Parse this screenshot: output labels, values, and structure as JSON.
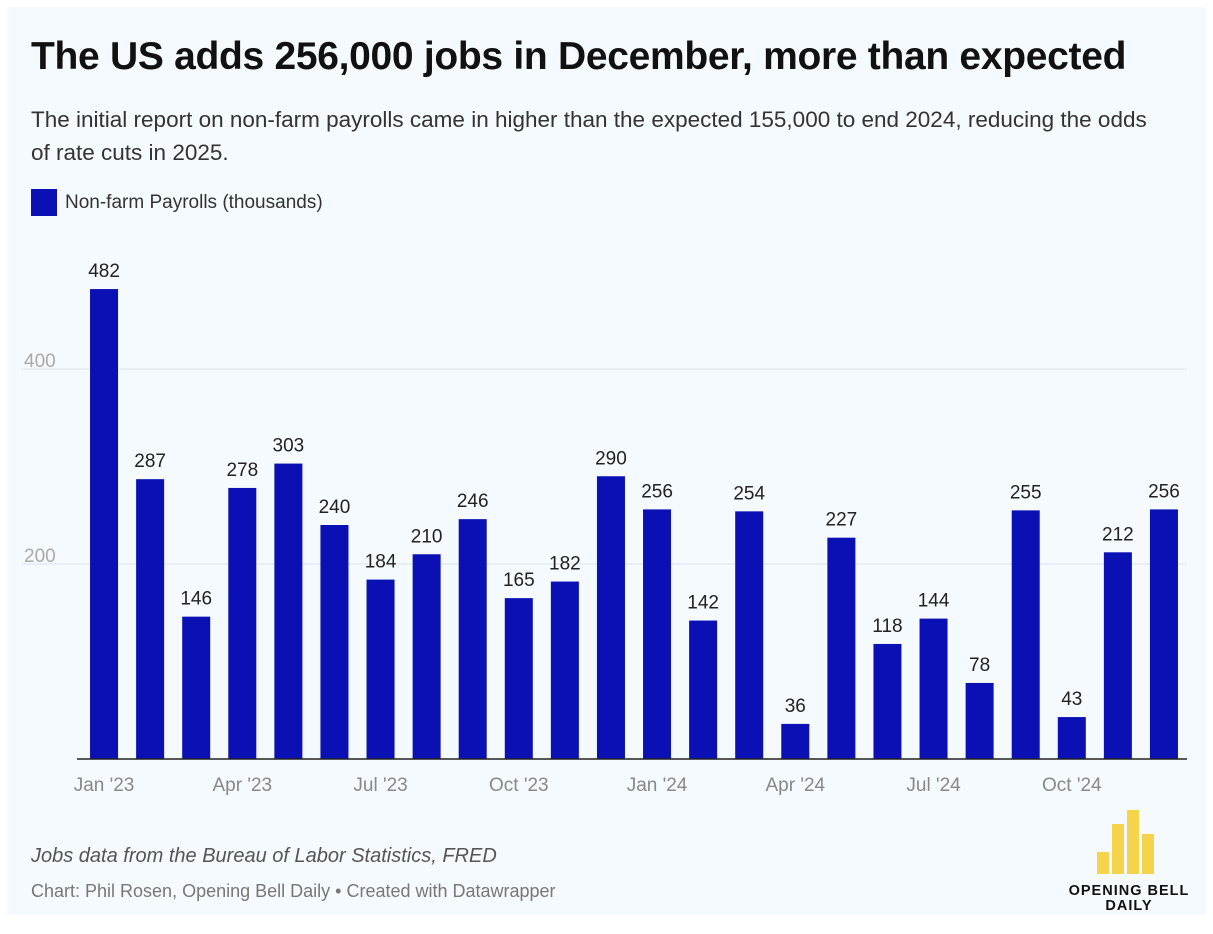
{
  "title": "The US adds 256,000 jobs in December, more than expected",
  "subtitle": "The initial report on non-farm payrolls came in higher than the expected 155,000 to end 2024, reducing the odds of rate cuts in 2025.",
  "source_note": "Jobs data from the Bureau of Labor Statistics, FRED",
  "credit": "Chart: Phil Rosen, Opening Bell Daily • Created with Datawrapper",
  "logo": {
    "line1": "OPENING BELL",
    "line2": "DAILY",
    "color": "#f5d34b"
  },
  "colors": {
    "bar": "#0a10b3",
    "grid": "#dde3ea",
    "axis": "#222222",
    "background": "#f4fafd"
  },
  "chart_data": {
    "type": "bar",
    "series": [
      {
        "name": "Non-farm Payrolls (thousands)",
        "values": [
          482,
          287,
          146,
          278,
          303,
          240,
          184,
          210,
          246,
          165,
          182,
          290,
          256,
          142,
          254,
          36,
          227,
          118,
          144,
          78,
          255,
          43,
          212,
          256
        ]
      }
    ],
    "categories": [
      "Jan 2023",
      "Feb 2023",
      "Mar 2023",
      "Apr 2023",
      "May 2023",
      "Jun 2023",
      "Jul 2023",
      "Aug 2023",
      "Sep 2023",
      "Oct 2023",
      "Nov 2023",
      "Dec 2023",
      "Jan 2024",
      "Feb 2024",
      "Mar 2024",
      "Apr 2024",
      "May 2024",
      "Jun 2024",
      "Jul 2024",
      "Aug 2024",
      "Sep 2024",
      "Oct 2024",
      "Nov 2024",
      "Dec 2024"
    ],
    "x_tick_labels": [
      {
        "index": 0,
        "label": "Jan '23"
      },
      {
        "index": 3,
        "label": "Apr '23"
      },
      {
        "index": 6,
        "label": "Jul '23"
      },
      {
        "index": 9,
        "label": "Oct '23"
      },
      {
        "index": 12,
        "label": "Jan '24"
      },
      {
        "index": 15,
        "label": "Apr '24"
      },
      {
        "index": 18,
        "label": "Jul '24"
      },
      {
        "index": 21,
        "label": "Oct '24"
      }
    ],
    "y_ticks": [
      200,
      400
    ],
    "ylim": [
      0,
      500
    ],
    "grid": true,
    "data_labels": true,
    "legend_position": "top-left"
  }
}
